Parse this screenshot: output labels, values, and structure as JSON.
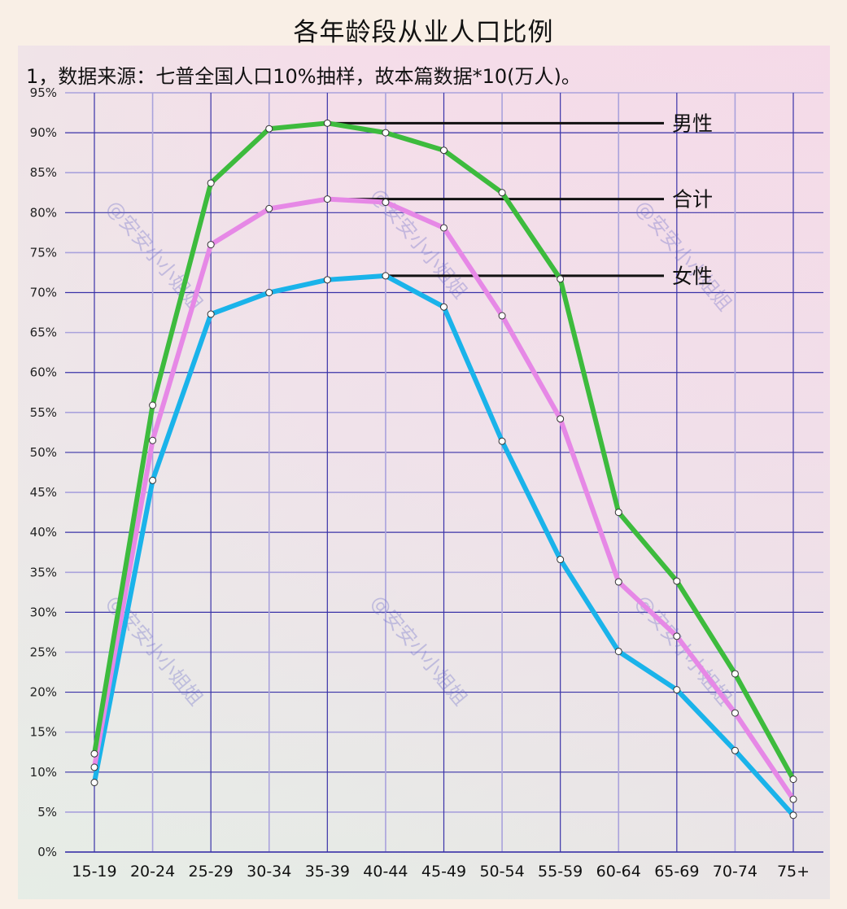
{
  "title": "各年龄段从业人口比例",
  "note": "1，数据来源：七普全国人口10%抽样，故本篇数据*10(万人)。",
  "watermark": "@安安小小姐姐",
  "chart_data": {
    "type": "line",
    "title": "各年龄段从业人口比例",
    "subtitle": "1，数据来源：七普全国人口10%抽样，故本篇数据*10(万人)。",
    "xlabel": "",
    "ylabel": "",
    "ylim": [
      0,
      95
    ],
    "yticks": [
      "0%",
      "5%",
      "10%",
      "15%",
      "20%",
      "25%",
      "30%",
      "35%",
      "40%",
      "45%",
      "50%",
      "55%",
      "60%",
      "65%",
      "70%",
      "75%",
      "80%",
      "85%",
      "90%",
      "95%"
    ],
    "grid": true,
    "legend_position": "right, inline labels with leader lines",
    "categories": [
      "15-19",
      "20-24",
      "25-29",
      "30-34",
      "35-39",
      "40-44",
      "45-49",
      "50-54",
      "55-59",
      "60-64",
      "65-69",
      "70-74",
      "75+"
    ],
    "series": [
      {
        "name": "男性",
        "color": "#3dbb3d",
        "values": [
          12.3,
          55.9,
          83.7,
          90.5,
          91.2,
          90.0,
          87.8,
          82.5,
          71.7,
          42.5,
          33.9,
          22.3,
          9.1
        ],
        "label_anchor_index": 4
      },
      {
        "name": "合计",
        "color": "#e688e6",
        "values": [
          10.6,
          51.5,
          76.0,
          80.5,
          81.7,
          81.3,
          78.1,
          67.1,
          54.2,
          33.8,
          27.0,
          17.4,
          6.6
        ],
        "label_anchor_index": 4
      },
      {
        "name": "女性",
        "color": "#1ab3ea",
        "values": [
          8.7,
          46.5,
          67.3,
          70.0,
          71.6,
          72.1,
          68.2,
          51.4,
          36.6,
          25.1,
          20.3,
          12.7,
          4.6
        ],
        "label_anchor_index": 5
      }
    ]
  }
}
